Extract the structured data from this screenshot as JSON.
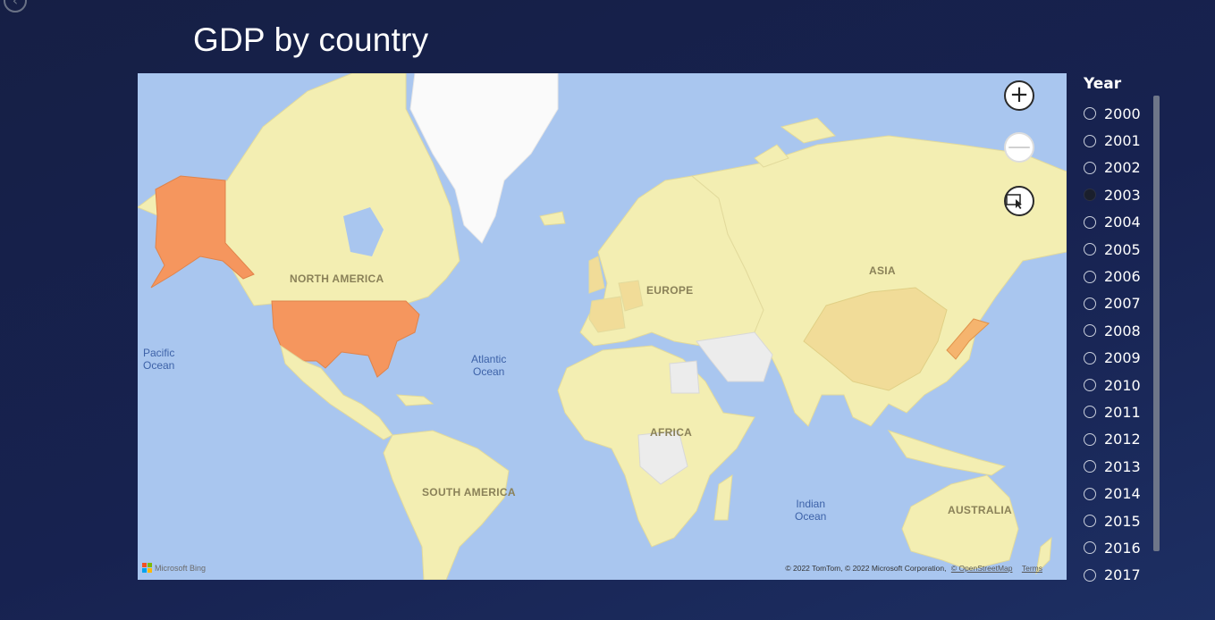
{
  "report": {
    "title": "GDP by country",
    "back_icon": "back-arrow-icon"
  },
  "map": {
    "continent_labels": {
      "north_america": "NORTH AMERICA",
      "europe": "EUROPE",
      "asia": "ASIA",
      "africa": "AFRICA",
      "south_america": "SOUTH AMERICA",
      "australia": "AUSTRALIA"
    },
    "ocean_labels": {
      "pacific": "Pacific\nOcean",
      "atlantic": "Atlantic\nOcean",
      "indian": "Indian\nOcean"
    },
    "controls": {
      "zoom_in": "+",
      "zoom_out": "—",
      "select_tool_icon": "rectangle-select-icon"
    },
    "logo": "Microsoft Bing",
    "attribution": {
      "text": "© 2022 TomTom, © 2022 Microsoft Corporation,",
      "osm_link": "© OpenStreetMap",
      "terms_link": "Terms"
    },
    "colors": {
      "water": "#a9c6ef",
      "land_default": "#f3eeb2",
      "highest": "#f5965e",
      "mid": "#f1dc98",
      "no_data": "#ececec"
    }
  },
  "slicer": {
    "title": "Year",
    "selected": "2003",
    "years": [
      "2000",
      "2001",
      "2002",
      "2003",
      "2004",
      "2005",
      "2006",
      "2007",
      "2008",
      "2009",
      "2010",
      "2011",
      "2012",
      "2013",
      "2014",
      "2015",
      "2016",
      "2017"
    ]
  }
}
